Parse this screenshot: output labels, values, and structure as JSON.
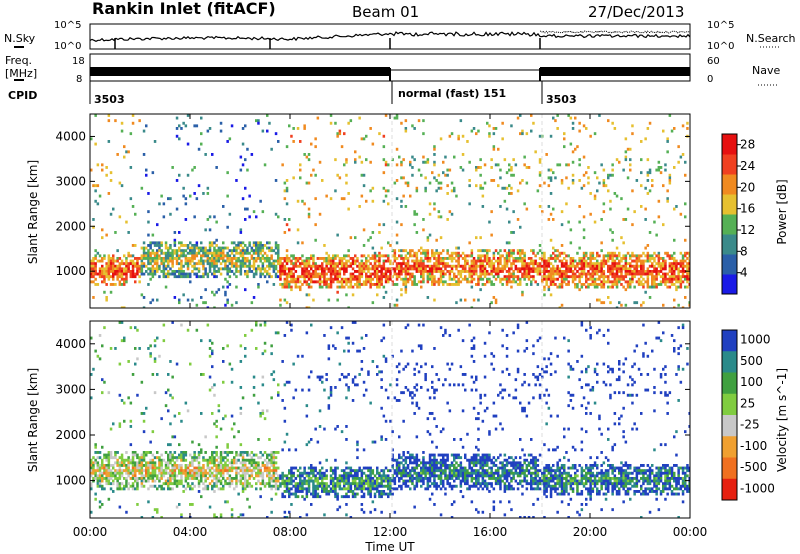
{
  "header": {
    "title": "Rankin Inlet (fitACF)",
    "beam": "Beam 01",
    "date": "27/Dec/2013"
  },
  "strip": {
    "nsky_label": "N.Sky",
    "nsearch_label": "N.Search",
    "nsky_ticks": [
      "10^5",
      "10^0"
    ],
    "nsearch_ticks": [
      "10^5",
      "10^0"
    ],
    "freq_label_1": "Freq.",
    "freq_label_2": "[MHz]",
    "freq_ticks": [
      "18",
      "8"
    ],
    "nave_label": "Nave",
    "nave_ticks": [
      "60",
      "0"
    ],
    "cpid_label": "CPID",
    "cpid_segments": [
      {
        "label": "3503",
        "start_hour": 0,
        "end_hour": 12
      },
      {
        "label": "normal (fast) 151",
        "start_hour": 12,
        "end_hour": 18
      },
      {
        "label": "3503",
        "start_hour": 18,
        "end_hour": 24
      }
    ]
  },
  "chart_data": [
    {
      "type": "heatmap",
      "panel": "power",
      "ylabel": "Slant Range [km]",
      "xlabel": "",
      "ylim": [
        180,
        4500
      ],
      "xlim_hours": [
        0,
        24
      ],
      "yticks": [
        "1000",
        "2000",
        "3000",
        "4000"
      ],
      "colorbar_label": "Power [dB]",
      "colorbar_ticks": [
        "4",
        "8",
        "12",
        "16",
        "20",
        "24",
        "28"
      ],
      "colorbar_range": [
        0,
        30
      ],
      "colors": [
        "#1a1ae6",
        "#2a5fa8",
        "#3a8a8a",
        "#55b055",
        "#e6c030",
        "#f08a20",
        "#f04020",
        "#e61010"
      ],
      "bands": [
        {
          "start": 0.0,
          "end": 2.0,
          "center": 1050,
          "width": 700,
          "level": 0.82
        },
        {
          "start": 2.0,
          "end": 7.5,
          "center": 1300,
          "width": 800,
          "level": 0.55
        },
        {
          "start": 7.5,
          "end": 12.0,
          "center": 1000,
          "width": 750,
          "level": 0.85
        },
        {
          "start": 12.0,
          "end": 18.0,
          "center": 1100,
          "width": 800,
          "level": 0.8
        },
        {
          "start": 18.0,
          "end": 24.0,
          "center": 1050,
          "width": 800,
          "level": 0.82
        }
      ]
    },
    {
      "type": "heatmap",
      "panel": "velocity",
      "ylabel": "Slant Range [km]",
      "xlabel": "Time UT",
      "ylim": [
        180,
        4500
      ],
      "xlim_hours": [
        0,
        24
      ],
      "yticks": [
        "1000",
        "2000",
        "3000",
        "4000"
      ],
      "xticks": [
        "00:00",
        "04:00",
        "08:00",
        "12:00",
        "16:00",
        "20:00",
        "00:00"
      ],
      "colorbar_label": "Velocity [m s^-1]",
      "colorbar_ticks": [
        "1000",
        "500",
        "100",
        "25",
        "-25",
        "-100",
        "-500",
        "-1000"
      ],
      "colorbar_range": [
        -1000,
        1000
      ],
      "colors": [
        "#2040c0",
        "#2a8a8a",
        "#40a040",
        "#80cc40",
        "#c8c8c8",
        "#f0a030",
        "#f07020",
        "#e62010"
      ],
      "bands": [
        {
          "start": 0.0,
          "end": 7.5,
          "center": 1250,
          "width": 800,
          "level": 0.6
        },
        {
          "start": 7.5,
          "end": 12.0,
          "center": 1000,
          "width": 700,
          "level": 0.3
        },
        {
          "start": 12.0,
          "end": 18.0,
          "center": 1200,
          "width": 800,
          "level": 0.2
        },
        {
          "start": 18.0,
          "end": 24.0,
          "center": 1050,
          "width": 700,
          "level": 0.25
        }
      ]
    }
  ]
}
